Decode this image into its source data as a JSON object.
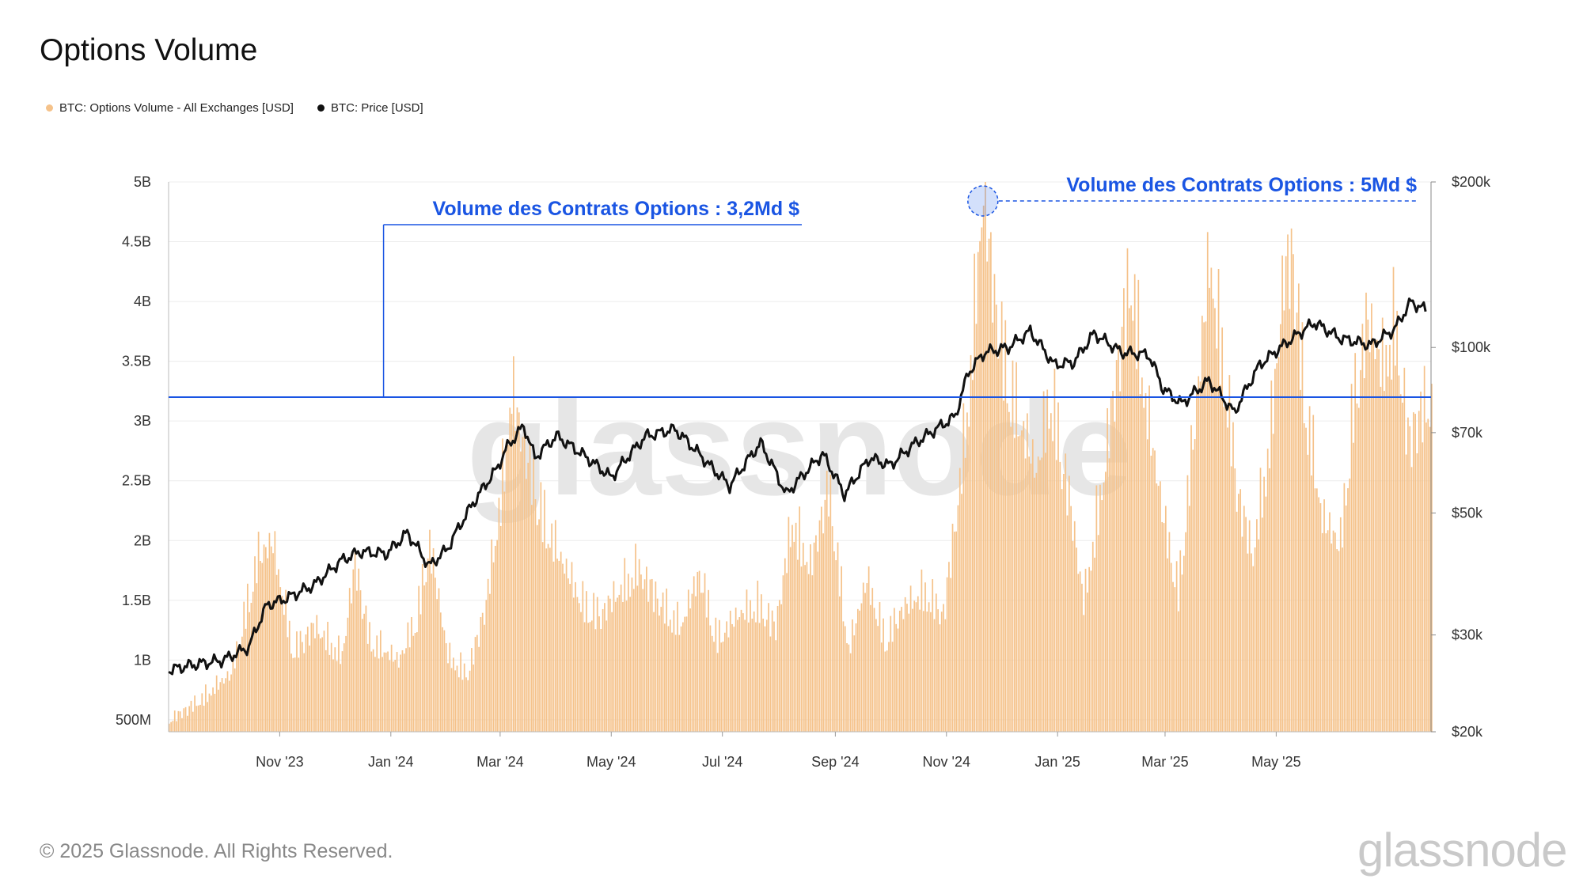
{
  "page": {
    "title": "Options Volume",
    "copyright": "© 2025 Glassnode. All Rights Reserved.",
    "watermark": "glassnode",
    "logo": "glassnode"
  },
  "legend": [
    {
      "label": "BTC: Options Volume - All Exchanges [USD]",
      "color": "#f5c28a"
    },
    {
      "label": "BTC: Price [USD]",
      "color": "#111111"
    }
  ],
  "chart_data": {
    "type": "bar+line",
    "x_ticks": [
      "Nov '23",
      "Jan '24",
      "Mar '24",
      "May '24",
      "Jul '24",
      "Sep '24",
      "Nov '24",
      "Jan '25",
      "Mar '25",
      "May '25"
    ],
    "y_left": {
      "ticks": [
        "500M",
        "1B",
        "1.5B",
        "2B",
        "2.5B",
        "3B",
        "3.5B",
        "4B",
        "4.5B",
        "5B"
      ],
      "range": [
        0.4,
        5.0
      ],
      "unit": "B USD"
    },
    "y_right": {
      "ticks": [
        "$20k",
        "$30k",
        "$50k",
        "$70k",
        "$100k",
        "$200k"
      ],
      "range": [
        20000,
        200000
      ],
      "scale": "log"
    },
    "series": [
      {
        "name": "BTC: Options Volume - All Exchanges [USD]",
        "color": "#f5c28a",
        "kind": "bar",
        "points": [
          [
            "2023-09-01",
            0.5
          ],
          [
            "2023-09-20",
            0.7
          ],
          [
            "2023-10-05",
            0.9
          ],
          [
            "2023-10-20",
            1.9
          ],
          [
            "2023-10-28",
            2.0
          ],
          [
            "2023-11-08",
            1.1
          ],
          [
            "2023-11-20",
            1.3
          ],
          [
            "2023-12-05",
            1.05
          ],
          [
            "2023-12-12",
            1.85
          ],
          [
            "2023-12-20",
            1.2
          ],
          [
            "2024-01-05",
            1.0
          ],
          [
            "2024-01-15",
            1.4
          ],
          [
            "2024-01-22",
            2.0
          ],
          [
            "2024-02-01",
            1.05
          ],
          [
            "2024-02-12",
            0.9
          ],
          [
            "2024-02-22",
            1.5
          ],
          [
            "2024-03-01",
            2.4
          ],
          [
            "2024-03-07",
            3.3
          ],
          [
            "2024-03-14",
            2.8
          ],
          [
            "2024-03-25",
            2.2
          ],
          [
            "2024-04-05",
            1.8
          ],
          [
            "2024-04-15",
            1.5
          ],
          [
            "2024-04-25",
            1.4
          ],
          [
            "2024-05-05",
            1.6
          ],
          [
            "2024-05-15",
            1.8
          ],
          [
            "2024-05-28",
            1.5
          ],
          [
            "2024-06-08",
            1.3
          ],
          [
            "2024-06-18",
            1.75
          ],
          [
            "2024-06-28",
            1.2
          ],
          [
            "2024-07-10",
            1.4
          ],
          [
            "2024-07-20",
            1.5
          ],
          [
            "2024-07-30",
            1.3
          ],
          [
            "2024-08-08",
            2.2
          ],
          [
            "2024-08-18",
            1.8
          ],
          [
            "2024-08-28",
            2.5
          ],
          [
            "2024-09-08",
            1.1
          ],
          [
            "2024-09-18",
            1.7
          ],
          [
            "2024-09-28",
            1.2
          ],
          [
            "2024-10-08",
            1.45
          ],
          [
            "2024-10-20",
            1.6
          ],
          [
            "2024-10-30",
            1.4
          ],
          [
            "2024-11-08",
            2.5
          ],
          [
            "2024-11-14",
            3.5
          ],
          [
            "2024-11-18",
            4.4
          ],
          [
            "2024-11-21",
            5.0
          ],
          [
            "2024-11-26",
            4.2
          ],
          [
            "2024-12-02",
            3.6
          ],
          [
            "2024-12-10",
            3.1
          ],
          [
            "2024-12-20",
            2.6
          ],
          [
            "2024-12-28",
            3.3
          ],
          [
            "2025-01-08",
            2.3
          ],
          [
            "2025-01-15",
            1.5
          ],
          [
            "2025-01-25",
            2.5
          ],
          [
            "2025-02-05",
            3.8
          ],
          [
            "2025-02-10",
            4.3
          ],
          [
            "2025-02-18",
            3.2
          ],
          [
            "2025-02-28",
            2.2
          ],
          [
            "2025-03-08",
            1.6
          ],
          [
            "2025-03-18",
            3.2
          ],
          [
            "2025-03-25",
            4.4
          ],
          [
            "2025-04-02",
            3.5
          ],
          [
            "2025-04-10",
            2.4
          ],
          [
            "2025-04-18",
            1.9
          ],
          [
            "2025-04-28",
            3.0
          ],
          [
            "2025-05-05",
            4.3
          ],
          [
            "2025-05-10",
            4.45
          ],
          [
            "2025-05-16",
            3.3
          ],
          [
            "2025-05-26",
            2.2
          ],
          [
            "2025-06-05",
            2.0
          ],
          [
            "2025-06-12",
            3.2
          ],
          [
            "2025-06-20",
            3.9
          ],
          [
            "2025-06-28",
            3.5
          ],
          [
            "2025-07-05",
            3.9
          ],
          [
            "2025-07-12",
            2.9
          ],
          [
            "2025-07-22",
            3.2
          ]
        ]
      },
      {
        "name": "BTC: Price [USD]",
        "color": "#111111",
        "kind": "line",
        "points": [
          [
            "2023-09-01",
            25900
          ],
          [
            "2023-09-15",
            26500
          ],
          [
            "2023-10-01",
            27000
          ],
          [
            "2023-10-15",
            28500
          ],
          [
            "2023-10-25",
            34000
          ],
          [
            "2023-11-05",
            35000
          ],
          [
            "2023-11-20",
            37000
          ],
          [
            "2023-12-05",
            41000
          ],
          [
            "2023-12-15",
            42500
          ],
          [
            "2023-12-30",
            42200
          ],
          [
            "2024-01-10",
            46000
          ],
          [
            "2024-01-22",
            40000
          ],
          [
            "2024-02-01",
            43000
          ],
          [
            "2024-02-15",
            52000
          ],
          [
            "2024-02-28",
            60000
          ],
          [
            "2024-03-05",
            66000
          ],
          [
            "2024-03-14",
            72000
          ],
          [
            "2024-03-20",
            63000
          ],
          [
            "2024-04-01",
            69000
          ],
          [
            "2024-04-15",
            64000
          ],
          [
            "2024-05-01",
            58000
          ],
          [
            "2024-05-20",
            69000
          ],
          [
            "2024-06-05",
            71000
          ],
          [
            "2024-06-24",
            61000
          ],
          [
            "2024-07-05",
            56000
          ],
          [
            "2024-07-22",
            67000
          ],
          [
            "2024-08-05",
            54000
          ],
          [
            "2024-08-25",
            64000
          ],
          [
            "2024-09-06",
            54000
          ],
          [
            "2024-09-20",
            63000
          ],
          [
            "2024-10-01",
            61000
          ],
          [
            "2024-10-15",
            67000
          ],
          [
            "2024-10-29",
            72000
          ],
          [
            "2024-11-06",
            75000
          ],
          [
            "2024-11-13",
            90000
          ],
          [
            "2024-11-22",
            98000
          ],
          [
            "2024-12-05",
            100000
          ],
          [
            "2024-12-17",
            107000
          ],
          [
            "2024-12-30",
            93000
          ],
          [
            "2025-01-10",
            94000
          ],
          [
            "2025-01-21",
            106000
          ],
          [
            "2025-02-05",
            98000
          ],
          [
            "2025-02-20",
            97000
          ],
          [
            "2025-02-28",
            84000
          ],
          [
            "2025-03-10",
            79000
          ],
          [
            "2025-03-25",
            87000
          ],
          [
            "2025-04-08",
            76000
          ],
          [
            "2025-04-22",
            93000
          ],
          [
            "2025-05-10",
            104000
          ],
          [
            "2025-05-22",
            111000
          ],
          [
            "2025-06-05",
            104000
          ],
          [
            "2025-06-22",
            101000
          ],
          [
            "2025-07-05",
            108000
          ],
          [
            "2025-07-14",
            121000
          ],
          [
            "2025-07-22",
            117000
          ]
        ]
      }
    ],
    "annotations": [
      {
        "text": "Volume des Contrats Options : 3,2Md $",
        "value": 3.2,
        "color": "#1a55e3"
      },
      {
        "text": "Volume des Contrats Options : 5Md $",
        "value": 5.0,
        "date": "2024-11-21",
        "color": "#1a55e3"
      }
    ],
    "grid": true,
    "legend_position": "top-left"
  }
}
